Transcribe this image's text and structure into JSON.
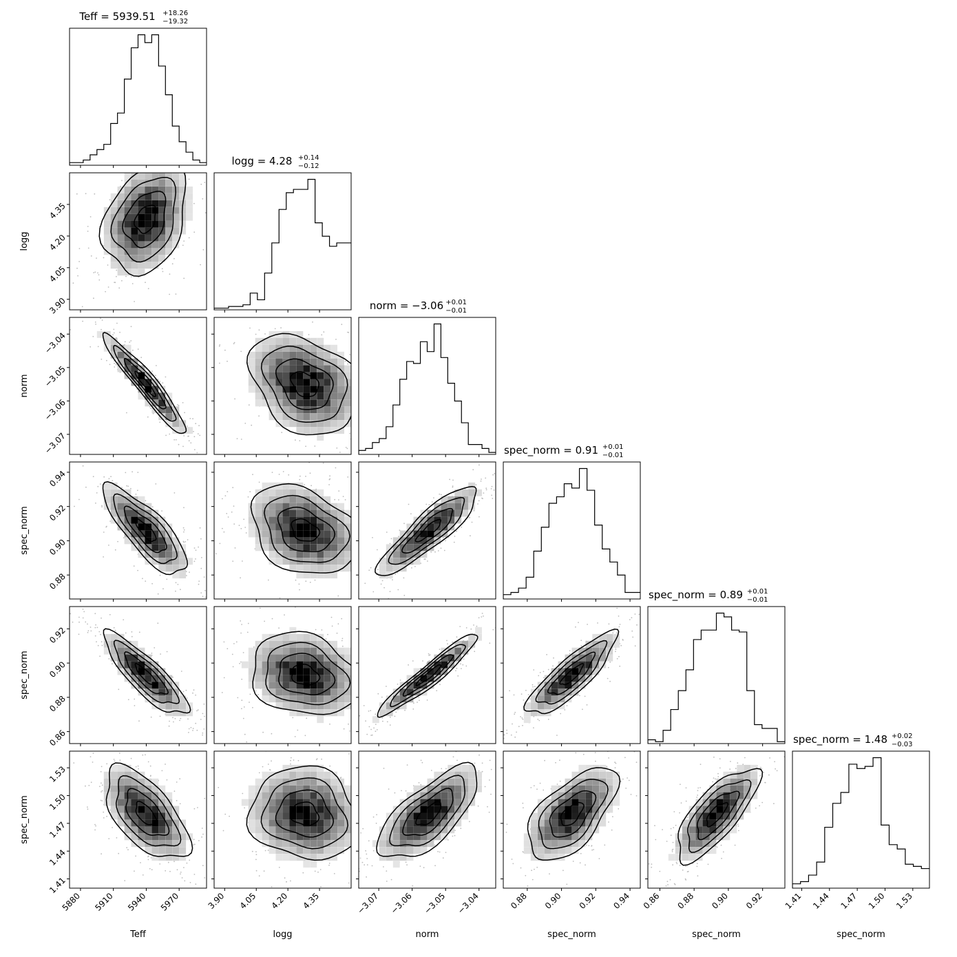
{
  "chart_data": {
    "type": "corner",
    "params": [
      {
        "label": "Teff",
        "range": [
          5870,
          5995
        ],
        "ticks": [
          5880,
          5910,
          5940,
          5970
        ],
        "tick_labels": [
          "5880",
          "5910",
          "5940",
          "5970"
        ],
        "title": {
          "prefix": "Teff = ",
          "value": "5939.51",
          "plus": "+18.26",
          "minus": "−19.32"
        }
      },
      {
        "label": "logg",
        "range": [
          3.85,
          4.5
        ],
        "ticks": [
          3.9,
          4.05,
          4.2,
          4.35
        ],
        "tick_labels": [
          "3.90",
          "4.05",
          "4.20",
          "4.35"
        ],
        "title": {
          "prefix": "logg = ",
          "value": "4.28",
          "plus": "+0.14",
          "minus": "−0.12"
        }
      },
      {
        "label": "norm",
        "range": [
          -3.076,
          -3.035
        ],
        "ticks": [
          -3.07,
          -3.06,
          -3.05,
          -3.04
        ],
        "tick_labels": [
          "−3.07",
          "−3.06",
          "−3.05",
          "−3.04"
        ],
        "title": {
          "prefix": "norm = ",
          "value": "−3.06",
          "plus": "+0.01",
          "minus": "−0.01"
        }
      },
      {
        "label": "spec_norm",
        "range": [
          0.866,
          0.946
        ],
        "ticks": [
          0.88,
          0.9,
          0.92,
          0.94
        ],
        "tick_labels": [
          "0.88",
          "0.90",
          "0.92",
          "0.94"
        ],
        "title": {
          "prefix": "spec_norm = ",
          "value": "0.91",
          "plus": "+0.01",
          "minus": "−0.01"
        }
      },
      {
        "label": "spec_norm",
        "range": [
          0.853,
          0.933
        ],
        "ticks": [
          0.86,
          0.88,
          0.9,
          0.92
        ],
        "tick_labels": [
          "0.86",
          "0.88",
          "0.90",
          "0.92"
        ],
        "title": {
          "prefix": "spec_norm = ",
          "value": "0.89",
          "plus": "+0.01",
          "minus": "−0.01"
        }
      },
      {
        "label": "spec_norm",
        "range": [
          1.4,
          1.548
        ],
        "ticks": [
          1.41,
          1.44,
          1.47,
          1.5,
          1.53
        ],
        "tick_labels": [
          "1.41",
          "1.44",
          "1.47",
          "1.50",
          "1.53"
        ],
        "title": {
          "prefix": "spec_norm = ",
          "value": "1.48",
          "plus": "+0.02",
          "minus": "−0.03"
        }
      }
    ],
    "histograms": [
      [
        1,
        1,
        2,
        4,
        6,
        8,
        16,
        20,
        33,
        45,
        50,
        47,
        50,
        38,
        27,
        15,
        9,
        5,
        2,
        1
      ],
      [
        1,
        1,
        2,
        2,
        3,
        10,
        6,
        22,
        40,
        60,
        70,
        72,
        72,
        78,
        52,
        44,
        38,
        40,
        40
      ],
      [
        2,
        3,
        6,
        8,
        14,
        25,
        38,
        47,
        46,
        57,
        52,
        66,
        49,
        36,
        27,
        16,
        5,
        5,
        3,
        1
      ],
      [
        2,
        3,
        5,
        10,
        22,
        33,
        44,
        47,
        53,
        51,
        60,
        50,
        34,
        23,
        17,
        11,
        3,
        3
      ],
      [
        2,
        1,
        7,
        18,
        28,
        39,
        55,
        60,
        60,
        69,
        67,
        60,
        59,
        28,
        10,
        8,
        8,
        1
      ],
      [
        2,
        3,
        6,
        12,
        28,
        39,
        44,
        57,
        55,
        56,
        60,
        29,
        20,
        18,
        11,
        10,
        9
      ]
    ],
    "hist_max": [
      50,
      78,
      66,
      60,
      69,
      60
    ],
    "means": [
      5939.51,
      4.28,
      -3.055,
      0.906,
      0.893,
      1.48
    ],
    "sigmas": [
      19,
      0.13,
      0.0075,
      0.013,
      0.012,
      0.025
    ],
    "correlation_matrix": [
      [
        1.0,
        0.3,
        -0.95,
        -0.8,
        -0.85,
        -0.6
      ],
      [
        0.3,
        1.0,
        -0.3,
        -0.3,
        -0.2,
        -0.1
      ],
      [
        -0.95,
        -0.3,
        1.0,
        0.88,
        0.95,
        0.7
      ],
      [
        -0.8,
        -0.3,
        0.88,
        1.0,
        0.85,
        0.6
      ],
      [
        -0.85,
        -0.2,
        0.95,
        0.85,
        1.0,
        0.75
      ],
      [
        -0.6,
        -0.1,
        0.7,
        0.6,
        0.75,
        1.0
      ]
    ]
  }
}
